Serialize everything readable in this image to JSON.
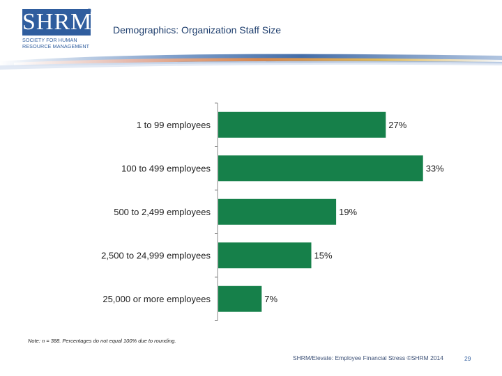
{
  "header": {
    "logo_text": "SHRM",
    "logo_registered": "®",
    "logo_subtitle": "SOCIETY FOR HUMAN RESOURCE MANAGEMENT",
    "title": "Demographics: Organization Staff Size"
  },
  "colors": {
    "brand_blue": "#2f5d9e",
    "bar_green": "#16804a",
    "title_blue": "#1f3f6e"
  },
  "chart_data": {
    "type": "bar",
    "orientation": "horizontal",
    "title": "Demographics: Organization Staff Size",
    "categories": [
      "1 to 99 employees",
      "100 to 499 employees",
      "500 to 2,499 employees",
      "2,500 to 24,999 employees",
      "25,000 or more employees"
    ],
    "values": [
      27,
      33,
      19,
      15,
      7
    ],
    "value_labels": [
      "27%",
      "33%",
      "19%",
      "15%",
      "7%"
    ],
    "unit": "%",
    "xlim": [
      0,
      40
    ],
    "grid": false,
    "legend": "none"
  },
  "footer": {
    "note": "Note: n = 388. Percentages do not equal 100% due to rounding.",
    "source": "SHRM/Elevate: Employee Financial Stress ©SHRM 2014",
    "page_number": "29"
  }
}
